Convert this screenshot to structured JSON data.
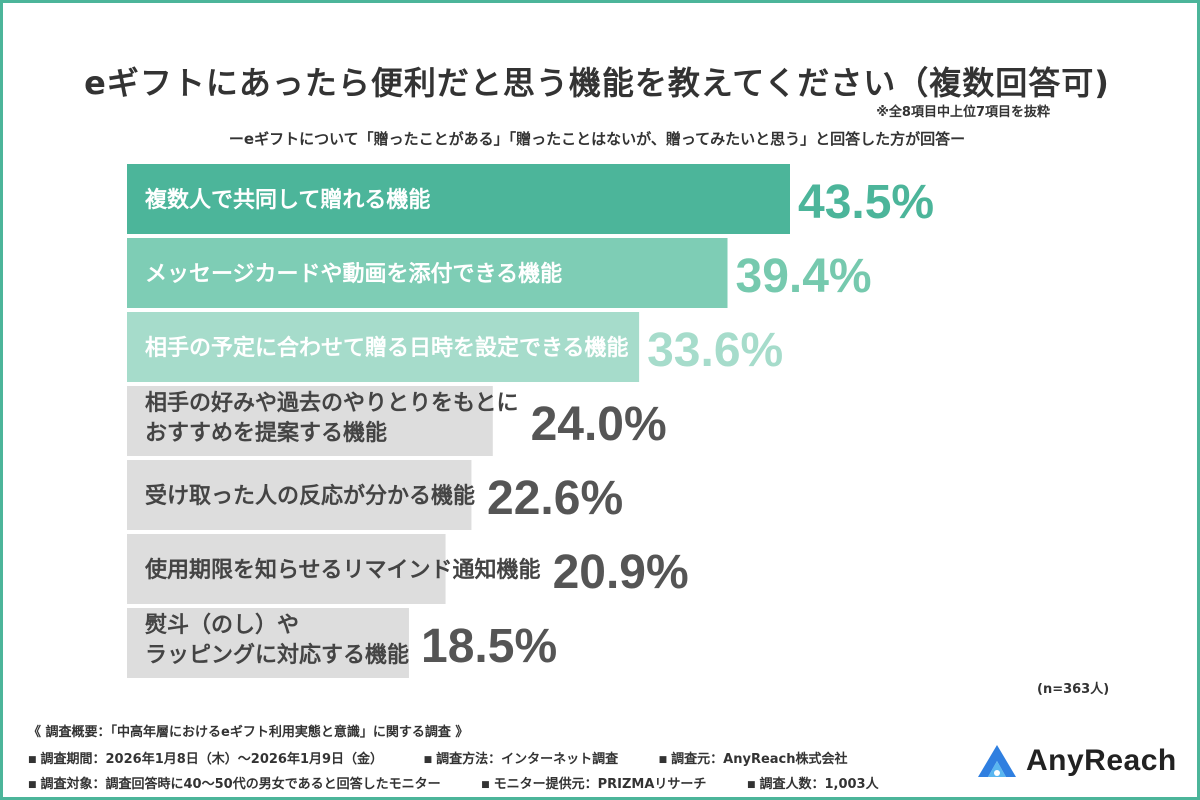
{
  "title": "eギフトにあったら便利だと思う機能を教えてください（複数回答可)",
  "note": "※全8項目中上位7項目を抜粋",
  "subtitle": "ーeギフトについて「贈ったことがある」「贈ったことはないが、贈ってみたいと思う」と回答した方が回答ー",
  "sample_size": "(n=363人)",
  "colors": {
    "frame": "#4cb59a",
    "bar1": "#4cb59a",
    "bar2": "#7ecdb5",
    "bar3": "#a6dccb",
    "bar_gray": "#dddddd",
    "value1": "#4cb59a",
    "value2": "#76c9ae",
    "value3": "#a6dccb",
    "value_gray": "#555555",
    "label_dark": "#444444"
  },
  "chart_data": {
    "type": "bar",
    "orientation": "horizontal",
    "unit": "%",
    "xlim": [
      0,
      100
    ],
    "categories": [
      [
        "複数人で共同して贈れる機能"
      ],
      [
        "メッセージカードや動画を添付できる機能"
      ],
      [
        "相手の予定に合わせて贈る日時を設定できる機能"
      ],
      [
        "相手の好みや過去のやりとりをもとに",
        "おすすめを提案する機能"
      ],
      [
        "受け取った人の反応が分かる機能"
      ],
      [
        "使用期限を知らせるリマインド通知機能"
      ],
      [
        "熨斗（のし）や",
        "ラッピングに対応する機能"
      ]
    ],
    "values": [
      43.5,
      39.4,
      33.6,
      24.0,
      22.6,
      20.9,
      18.5
    ],
    "value_labels": [
      "43.5%",
      "39.4%",
      "33.6%",
      "24.0%",
      "22.6%",
      "20.9%",
      "18.5%"
    ]
  },
  "survey": {
    "heading": "《 調査概要：「中高年層におけるeギフト利用実態と意識」に関する調査 》",
    "row1": [
      "調査期間：2026年1月8日（木）〜2026年1月9日（金）",
      "調査方法：インターネット調査",
      "調査元：AnyReach株式会社"
    ],
    "row2": [
      "調査対象：調査回答時に40〜50代の男女であると回答したモニター",
      "モニター提供元：PRIZMAリサーチ",
      "調査人数：1,003人"
    ],
    "bullet": "■"
  },
  "logo": {
    "text": "AnyReach",
    "icon": "anyreach-logo-icon"
  }
}
